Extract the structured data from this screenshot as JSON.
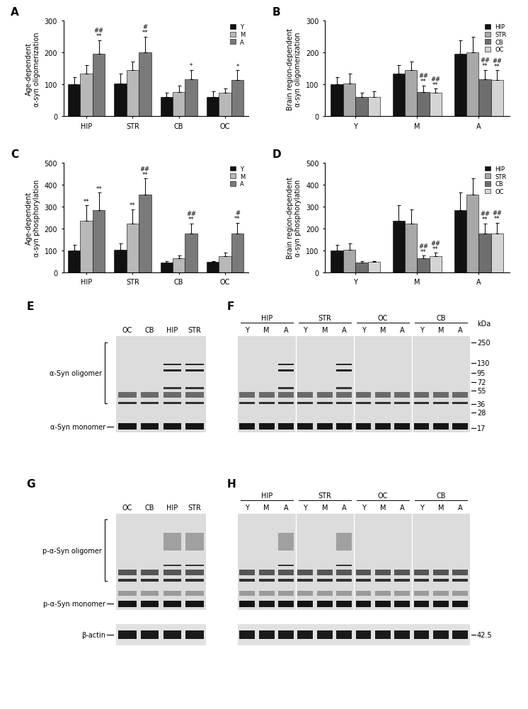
{
  "chart_data": [
    {
      "type": "bar",
      "title": "A",
      "y_label": "Age-dependent\nα-syn oligomerization",
      "categories": [
        "HIP",
        "STR",
        "CB",
        "OC"
      ],
      "series": [
        {
          "name": "Y",
          "color": "#111111",
          "values": [
            100,
            103,
            60,
            62
          ],
          "errors": [
            22,
            30,
            15,
            17
          ]
        },
        {
          "name": "M",
          "color": "#b8b8b8",
          "values": [
            135,
            146,
            77,
            74
          ],
          "errors": [
            25,
            25,
            20,
            13
          ]
        },
        {
          "name": "A",
          "color": "#7a7a7a",
          "values": [
            197,
            200,
            116,
            115
          ],
          "errors": [
            42,
            50,
            30,
            30
          ]
        }
      ],
      "ylim": [
        0,
        300
      ],
      "yticks": [
        0,
        100,
        200,
        300
      ],
      "legend": "upper right",
      "annotations": [
        {
          "series": "A",
          "category": "HIP",
          "text": "##\n**"
        },
        {
          "series": "A",
          "category": "STR",
          "text": "#\n**"
        },
        {
          "series": "A",
          "category": "CB",
          "text": "*"
        },
        {
          "series": "A",
          "category": "OC",
          "text": "*"
        }
      ]
    },
    {
      "type": "bar",
      "title": "B",
      "y_label": "Brain region-dependent\nα-syn oligomerization",
      "categories": [
        "Y",
        "M",
        "A"
      ],
      "series": [
        {
          "name": "HIP",
          "color": "#111111",
          "values": [
            100,
            135,
            197
          ],
          "errors": [
            22,
            25,
            42
          ]
        },
        {
          "name": "STR",
          "color": "#a8a8a8",
          "values": [
            103,
            146,
            200
          ],
          "errors": [
            30,
            25,
            50
          ]
        },
        {
          "name": "CB",
          "color": "#6e6e6e",
          "values": [
            60,
            77,
            116
          ],
          "errors": [
            15,
            20,
            30
          ]
        },
        {
          "name": "OC",
          "color": "#d4d4d4",
          "values": [
            62,
            74,
            115
          ],
          "errors": [
            17,
            13,
            30
          ]
        }
      ],
      "ylim": [
        0,
        300
      ],
      "yticks": [
        0,
        100,
        200,
        300
      ],
      "legend": "upper right",
      "annotations": [
        {
          "series": "CB",
          "category": "M",
          "text": "##\n**"
        },
        {
          "series": "OC",
          "category": "M",
          "text": "##\n**"
        },
        {
          "series": "CB",
          "category": "A",
          "text": "##\n**"
        },
        {
          "series": "OC",
          "category": "A",
          "text": "##\n**"
        }
      ]
    },
    {
      "type": "bar",
      "title": "C",
      "y_label": "Age-dependent\nα-syn phosphorylation",
      "categories": [
        "HIP",
        "STR",
        "CB",
        "OC"
      ],
      "series": [
        {
          "name": "Y",
          "color": "#111111",
          "values": [
            100,
            103,
            45,
            48
          ],
          "errors": [
            25,
            30,
            6,
            5
          ]
        },
        {
          "name": "M",
          "color": "#b8b8b8",
          "values": [
            235,
            222,
            65,
            75
          ],
          "errors": [
            70,
            65,
            12,
            15
          ]
        },
        {
          "name": "A",
          "color": "#7a7a7a",
          "values": [
            283,
            353,
            178,
            177
          ],
          "errors": [
            80,
            75,
            45,
            50
          ]
        }
      ],
      "ylim": [
        0,
        500
      ],
      "yticks": [
        0,
        100,
        200,
        300,
        400,
        500
      ],
      "legend": "upper right",
      "annotations": [
        {
          "series": "M",
          "category": "HIP",
          "text": "**"
        },
        {
          "series": "M",
          "category": "STR",
          "text": "**"
        },
        {
          "series": "A",
          "category": "HIP",
          "text": "**"
        },
        {
          "series": "A",
          "category": "STR",
          "text": "##\n**"
        },
        {
          "series": "A",
          "category": "CB",
          "text": "##\n**"
        },
        {
          "series": "A",
          "category": "OC",
          "text": "#\n**"
        }
      ]
    },
    {
      "type": "bar",
      "title": "D",
      "y_label": "Brain region-dependent\nα-syn phosphorylation",
      "categories": [
        "Y",
        "M",
        "A"
      ],
      "series": [
        {
          "name": "HIP",
          "color": "#111111",
          "values": [
            100,
            235,
            283
          ],
          "errors": [
            25,
            70,
            80
          ]
        },
        {
          "name": "STR",
          "color": "#a8a8a8",
          "values": [
            103,
            222,
            353
          ],
          "errors": [
            30,
            65,
            75
          ]
        },
        {
          "name": "CB",
          "color": "#6e6e6e",
          "values": [
            45,
            65,
            178
          ],
          "errors": [
            6,
            12,
            45
          ]
        },
        {
          "name": "OC",
          "color": "#d4d4d4",
          "values": [
            48,
            75,
            177
          ],
          "errors": [
            5,
            15,
            50
          ]
        }
      ],
      "ylim": [
        0,
        500
      ],
      "yticks": [
        0,
        100,
        200,
        300,
        400,
        500
      ],
      "legend": "upper right",
      "annotations": [
        {
          "series": "CB",
          "category": "M",
          "text": "##\n**"
        },
        {
          "series": "OC",
          "category": "M",
          "text": "##\n**"
        },
        {
          "series": "CB",
          "category": "A",
          "text": "##\n**"
        },
        {
          "series": "OC",
          "category": "A",
          "text": "##\n**"
        }
      ]
    }
  ],
  "blots": [
    {
      "panel": "E",
      "lanes": [
        "OC",
        "CB",
        "HIP",
        "STR"
      ],
      "bracket_label": "α-Syn oligomer",
      "monomer_label": "α-Syn monomer"
    },
    {
      "panel": "F",
      "groups": [
        {
          "name": "HIP",
          "lanes": [
            "Y",
            "M",
            "A"
          ]
        },
        {
          "name": "STR",
          "lanes": [
            "Y",
            "M",
            "A"
          ]
        },
        {
          "name": "OC",
          "lanes": [
            "Y",
            "M",
            "A"
          ]
        },
        {
          "name": "CB",
          "lanes": [
            "Y",
            "M",
            "A"
          ]
        }
      ],
      "unit": "kDa",
      "markers": [
        250,
        130,
        95,
        72,
        55,
        36,
        28,
        17
      ]
    },
    {
      "panel": "G",
      "lanes": [
        "OC",
        "CB",
        "HIP",
        "STR"
      ],
      "bracket_label": "p-α-Syn oligomer",
      "monomer_label": "p-α-Syn monomer",
      "loading_label": "β-actin"
    },
    {
      "panel": "H",
      "groups": [
        {
          "name": "HIP",
          "lanes": [
            "Y",
            "M",
            "A"
          ]
        },
        {
          "name": "STR",
          "lanes": [
            "Y",
            "M",
            "A"
          ]
        },
        {
          "name": "OC",
          "lanes": [
            "Y",
            "M",
            "A"
          ]
        },
        {
          "name": "CB",
          "lanes": [
            "Y",
            "M",
            "A"
          ]
        }
      ],
      "loading_marker": 42.5
    }
  ]
}
